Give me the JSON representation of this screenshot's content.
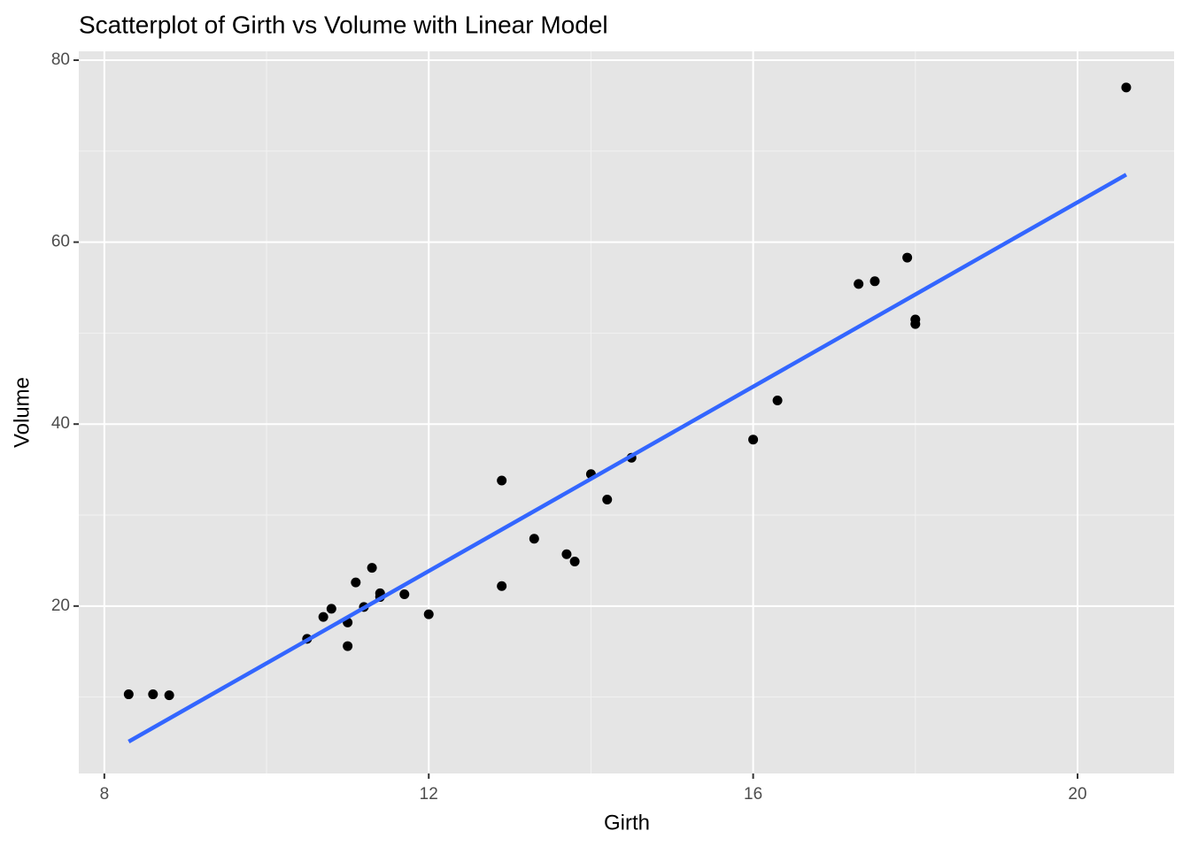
{
  "chart_data": {
    "type": "scatter",
    "title": "Scatterplot of Girth vs Volume with Linear Model",
    "xlabel": "Girth",
    "ylabel": "Volume",
    "x": [
      8.3,
      8.6,
      8.8,
      10.5,
      10.7,
      10.8,
      11.0,
      11.0,
      11.1,
      11.2,
      11.3,
      11.4,
      11.4,
      11.7,
      12.0,
      12.9,
      12.9,
      13.3,
      13.7,
      13.8,
      14.0,
      14.2,
      14.5,
      16.0,
      16.3,
      17.3,
      17.5,
      17.9,
      18.0,
      18.0,
      20.6
    ],
    "values": [
      10.3,
      10.3,
      10.2,
      16.4,
      18.8,
      19.7,
      15.6,
      18.2,
      22.6,
      19.9,
      24.2,
      21.0,
      21.4,
      21.3,
      19.1,
      22.2,
      33.8,
      27.4,
      25.7,
      24.9,
      34.5,
      31.7,
      36.3,
      38.3,
      42.6,
      55.4,
      55.7,
      58.3,
      51.5,
      51.0,
      77.0
    ],
    "color": "#000000",
    "fit": {
      "x": [
        8.3,
        20.6
      ],
      "values": [
        5.1,
        67.42
      ],
      "color": "#3366FF"
    },
    "xlim": [
      7.685,
      21.19
    ],
    "ylim": [
      1.6,
      80.97
    ],
    "xticks": [
      8,
      12,
      16,
      20
    ],
    "yticks": [
      20,
      40,
      60,
      80
    ],
    "xminorticks": [
      10,
      14,
      18
    ],
    "yminorticks": [
      10,
      30,
      50,
      70
    ],
    "grid": true
  }
}
